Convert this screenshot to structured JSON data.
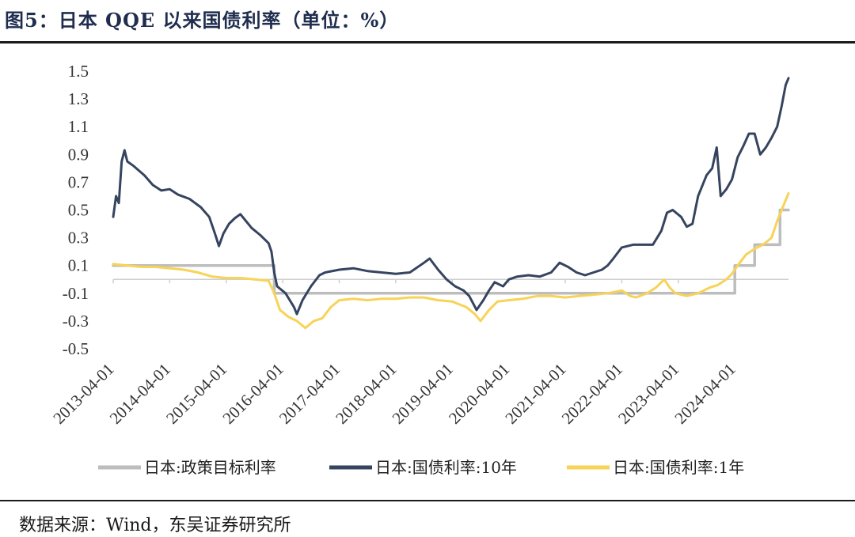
{
  "header": {
    "title": "图5：日本 QQE 以来国债利率（单位：%）"
  },
  "footer": {
    "source": "数据来源：Wind，东吴证券研究所"
  },
  "chart_data": {
    "type": "line",
    "title": "图5：日本 QQE 以来国债利率（单位：%）",
    "xlabel": "",
    "ylabel": "",
    "ylim": [
      -0.5,
      1.5
    ],
    "xlim": [
      2013.25,
      2025.2
    ],
    "y_ticks": [
      "1.5",
      "1.3",
      "1.1",
      "0.9",
      "0.7",
      "0.5",
      "0.3",
      "0.1",
      "-0.1",
      "-0.3",
      "-0.5"
    ],
    "x_tick_labels": [
      "2013-04-01",
      "2014-04-01",
      "2015-04-01",
      "2016-04-01",
      "2017-04-01",
      "2018-04-01",
      "2019-04-01",
      "2020-04-01",
      "2021-04-01",
      "2022-04-01",
      "2023-04-01",
      "2024-04-01"
    ],
    "x_tick_values": [
      2013.25,
      2014.25,
      2015.25,
      2016.25,
      2017.25,
      2018.25,
      2019.25,
      2020.25,
      2021.25,
      2022.25,
      2023.25,
      2024.25
    ],
    "legend_position": "bottom",
    "series": [
      {
        "name": "日本:政策目标利率",
        "color": "#bdbdbd",
        "step": true,
        "points": [
          [
            2013.25,
            0.1
          ],
          [
            2016.1,
            0.1
          ],
          [
            2016.1,
            -0.1
          ],
          [
            2024.25,
            -0.1
          ],
          [
            2024.25,
            0.1
          ],
          [
            2024.6,
            0.1
          ],
          [
            2024.6,
            0.25
          ],
          [
            2025.05,
            0.25
          ],
          [
            2025.05,
            0.5
          ],
          [
            2025.2,
            0.5
          ]
        ]
      },
      {
        "name": "日本:国债利率:10年",
        "color": "#36445f",
        "step": false,
        "points": [
          [
            2013.25,
            0.45
          ],
          [
            2013.3,
            0.6
          ],
          [
            2013.35,
            0.55
          ],
          [
            2013.4,
            0.85
          ],
          [
            2013.45,
            0.93
          ],
          [
            2013.5,
            0.85
          ],
          [
            2013.6,
            0.82
          ],
          [
            2013.8,
            0.75
          ],
          [
            2013.95,
            0.68
          ],
          [
            2014.1,
            0.64
          ],
          [
            2014.25,
            0.65
          ],
          [
            2014.4,
            0.61
          ],
          [
            2014.6,
            0.58
          ],
          [
            2014.8,
            0.52
          ],
          [
            2014.95,
            0.45
          ],
          [
            2015.05,
            0.33
          ],
          [
            2015.12,
            0.24
          ],
          [
            2015.2,
            0.33
          ],
          [
            2015.3,
            0.4
          ],
          [
            2015.4,
            0.44
          ],
          [
            2015.5,
            0.47
          ],
          [
            2015.6,
            0.42
          ],
          [
            2015.7,
            0.37
          ],
          [
            2015.85,
            0.32
          ],
          [
            2016.0,
            0.26
          ],
          [
            2016.05,
            0.2
          ],
          [
            2016.1,
            0.05
          ],
          [
            2016.15,
            -0.05
          ],
          [
            2016.3,
            -0.1
          ],
          [
            2016.45,
            -0.2
          ],
          [
            2016.5,
            -0.25
          ],
          [
            2016.6,
            -0.15
          ],
          [
            2016.75,
            -0.05
          ],
          [
            2016.9,
            0.03
          ],
          [
            2017.0,
            0.05
          ],
          [
            2017.25,
            0.07
          ],
          [
            2017.5,
            0.08
          ],
          [
            2017.75,
            0.06
          ],
          [
            2018.0,
            0.05
          ],
          [
            2018.25,
            0.04
          ],
          [
            2018.5,
            0.05
          ],
          [
            2018.75,
            0.12
          ],
          [
            2018.85,
            0.15
          ],
          [
            2019.0,
            0.07
          ],
          [
            2019.15,
            0.0
          ],
          [
            2019.3,
            -0.05
          ],
          [
            2019.45,
            -0.08
          ],
          [
            2019.55,
            -0.12
          ],
          [
            2019.68,
            -0.22
          ],
          [
            2019.8,
            -0.15
          ],
          [
            2019.9,
            -0.08
          ],
          [
            2020.0,
            -0.02
          ],
          [
            2020.15,
            -0.05
          ],
          [
            2020.25,
            0.0
          ],
          [
            2020.4,
            0.02
          ],
          [
            2020.6,
            0.03
          ],
          [
            2020.8,
            0.02
          ],
          [
            2021.0,
            0.05
          ],
          [
            2021.15,
            0.12
          ],
          [
            2021.3,
            0.09
          ],
          [
            2021.45,
            0.05
          ],
          [
            2021.6,
            0.03
          ],
          [
            2021.75,
            0.05
          ],
          [
            2021.9,
            0.07
          ],
          [
            2022.0,
            0.1
          ],
          [
            2022.1,
            0.15
          ],
          [
            2022.25,
            0.23
          ],
          [
            2022.45,
            0.25
          ],
          [
            2022.65,
            0.25
          ],
          [
            2022.8,
            0.25
          ],
          [
            2022.95,
            0.35
          ],
          [
            2023.05,
            0.48
          ],
          [
            2023.15,
            0.5
          ],
          [
            2023.3,
            0.45
          ],
          [
            2023.4,
            0.38
          ],
          [
            2023.5,
            0.4
          ],
          [
            2023.6,
            0.6
          ],
          [
            2023.75,
            0.75
          ],
          [
            2023.85,
            0.8
          ],
          [
            2023.93,
            0.95
          ],
          [
            2024.0,
            0.6
          ],
          [
            2024.1,
            0.65
          ],
          [
            2024.2,
            0.72
          ],
          [
            2024.3,
            0.88
          ],
          [
            2024.4,
            0.96
          ],
          [
            2024.5,
            1.05
          ],
          [
            2024.6,
            1.05
          ],
          [
            2024.7,
            0.9
          ],
          [
            2024.8,
            0.95
          ],
          [
            2024.9,
            1.02
          ],
          [
            2025.0,
            1.1
          ],
          [
            2025.08,
            1.25
          ],
          [
            2025.15,
            1.4
          ],
          [
            2025.2,
            1.45
          ]
        ]
      },
      {
        "name": "日本:国债利率:1年",
        "color": "#f7d358",
        "step": false,
        "points": [
          [
            2013.25,
            0.11
          ],
          [
            2013.5,
            0.1
          ],
          [
            2013.75,
            0.09
          ],
          [
            2014.0,
            0.09
          ],
          [
            2014.25,
            0.08
          ],
          [
            2014.5,
            0.07
          ],
          [
            2014.75,
            0.05
          ],
          [
            2015.0,
            0.02
          ],
          [
            2015.25,
            0.01
          ],
          [
            2015.5,
            0.01
          ],
          [
            2015.75,
            0.0
          ],
          [
            2016.0,
            -0.01
          ],
          [
            2016.1,
            -0.1
          ],
          [
            2016.2,
            -0.22
          ],
          [
            2016.35,
            -0.27
          ],
          [
            2016.5,
            -0.3
          ],
          [
            2016.65,
            -0.35
          ],
          [
            2016.8,
            -0.3
          ],
          [
            2016.95,
            -0.28
          ],
          [
            2017.1,
            -0.2
          ],
          [
            2017.25,
            -0.15
          ],
          [
            2017.5,
            -0.14
          ],
          [
            2017.75,
            -0.15
          ],
          [
            2018.0,
            -0.14
          ],
          [
            2018.25,
            -0.14
          ],
          [
            2018.5,
            -0.13
          ],
          [
            2018.75,
            -0.13
          ],
          [
            2019.0,
            -0.15
          ],
          [
            2019.25,
            -0.16
          ],
          [
            2019.5,
            -0.2
          ],
          [
            2019.65,
            -0.25
          ],
          [
            2019.75,
            -0.3
          ],
          [
            2019.9,
            -0.22
          ],
          [
            2020.05,
            -0.16
          ],
          [
            2020.25,
            -0.15
          ],
          [
            2020.5,
            -0.14
          ],
          [
            2020.75,
            -0.12
          ],
          [
            2021.0,
            -0.12
          ],
          [
            2021.25,
            -0.13
          ],
          [
            2021.5,
            -0.12
          ],
          [
            2021.75,
            -0.11
          ],
          [
            2022.0,
            -0.1
          ],
          [
            2022.25,
            -0.08
          ],
          [
            2022.4,
            -0.12
          ],
          [
            2022.5,
            -0.13
          ],
          [
            2022.7,
            -0.1
          ],
          [
            2022.85,
            -0.06
          ],
          [
            2023.0,
            0.0
          ],
          [
            2023.1,
            -0.06
          ],
          [
            2023.2,
            -0.1
          ],
          [
            2023.4,
            -0.12
          ],
          [
            2023.6,
            -0.1
          ],
          [
            2023.8,
            -0.06
          ],
          [
            2023.95,
            -0.04
          ],
          [
            2024.1,
            0.0
          ],
          [
            2024.2,
            0.04
          ],
          [
            2024.3,
            0.1
          ],
          [
            2024.45,
            0.18
          ],
          [
            2024.6,
            0.22
          ],
          [
            2024.75,
            0.25
          ],
          [
            2024.9,
            0.3
          ],
          [
            2025.0,
            0.42
          ],
          [
            2025.08,
            0.5
          ],
          [
            2025.15,
            0.57
          ],
          [
            2025.2,
            0.62
          ]
        ]
      }
    ]
  }
}
